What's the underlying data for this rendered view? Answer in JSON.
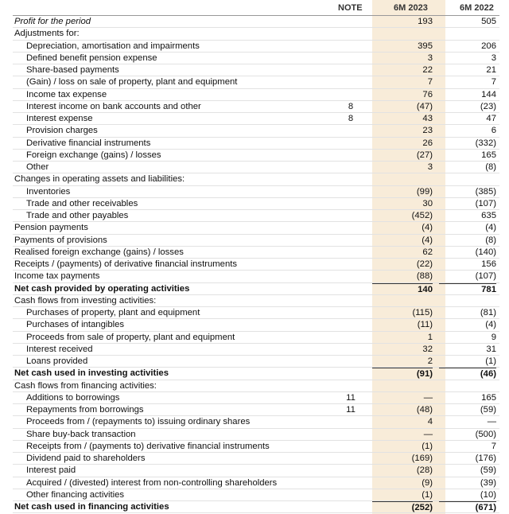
{
  "header": {
    "note": "NOTE",
    "m2023": "6M 2023",
    "m2022": "6M 2022"
  },
  "rows": [
    {
      "label": "Profit for the period",
      "m2023": "193",
      "m2022": "505"
    },
    {
      "label": "Adjustments for:"
    },
    {
      "label": "Depreciation, amortisation and impairments",
      "m2023": "395",
      "m2022": "206"
    },
    {
      "label": "Defined benefit pension expense",
      "m2023": "3",
      "m2022": "3"
    },
    {
      "label": "Share-based payments",
      "m2023": "22",
      "m2022": "21"
    },
    {
      "label": "(Gain) / loss on sale of property, plant and equipment",
      "m2023": "7",
      "m2022": "7"
    },
    {
      "label": "Income tax expense",
      "m2023": "76",
      "m2022": "144"
    },
    {
      "label": "Interest income on bank accounts and other",
      "note": "8",
      "m2023": "(47)",
      "m2022": "(23)"
    },
    {
      "label": "Interest expense",
      "note": "8",
      "m2023": "43",
      "m2022": "47"
    },
    {
      "label": "Provision charges",
      "m2023": "23",
      "m2022": "6"
    },
    {
      "label": "Derivative financial instruments",
      "m2023": "26",
      "m2022": "(332)"
    },
    {
      "label": "Foreign exchange (gains) / losses",
      "m2023": "(27)",
      "m2022": "165"
    },
    {
      "label": "Other",
      "m2023": "3",
      "m2022": "(8)"
    },
    {
      "label": "Changes in operating assets and liabilities:"
    },
    {
      "label": "Inventories",
      "m2023": "(99)",
      "m2022": "(385)"
    },
    {
      "label": "Trade and other receivables",
      "m2023": "30",
      "m2022": "(107)"
    },
    {
      "label": "Trade and other payables",
      "m2023": "(452)",
      "m2022": "635"
    },
    {
      "label": "Pension payments",
      "m2023": "(4)",
      "m2022": "(4)"
    },
    {
      "label": "Payments of provisions",
      "m2023": "(4)",
      "m2022": "(8)"
    },
    {
      "label": "Realised foreign exchange (gains) / losses",
      "m2023": "62",
      "m2022": "(140)"
    },
    {
      "label": "Receipts / (payments) of derivative financial instruments",
      "m2023": "(22)",
      "m2022": "156"
    },
    {
      "label": "Income tax payments",
      "m2023": "(88)",
      "m2022": "(107)"
    },
    {
      "label": "Net cash provided by operating activities",
      "m2023": "140",
      "m2022": "781"
    },
    {
      "label": "Cash flows from investing activities:"
    },
    {
      "label": "Purchases of property, plant and equipment",
      "m2023": "(115)",
      "m2022": "(81)"
    },
    {
      "label": "Purchases of intangibles",
      "m2023": "(11)",
      "m2022": "(4)"
    },
    {
      "label": "Proceeds from sale of property, plant and equipment",
      "m2023": "1",
      "m2022": "9"
    },
    {
      "label": "Interest received",
      "m2023": "32",
      "m2022": "31"
    },
    {
      "label": "Loans provided",
      "m2023": "2",
      "m2022": "(1)"
    },
    {
      "label": "Net cash used in investing activities",
      "m2023": "(91)",
      "m2022": "(46)"
    },
    {
      "label": "Cash flows from financing activities:"
    },
    {
      "label": "Additions to borrowings",
      "note": "11",
      "m2023": "—",
      "m2022": "165"
    },
    {
      "label": "Repayments from borrowings",
      "note": "11",
      "m2023": "(48)",
      "m2022": "(59)"
    },
    {
      "label": "Proceeds from / (repayments to) issuing ordinary shares",
      "m2023": "4",
      "m2022": "—"
    },
    {
      "label": "Share buy-back transaction",
      "m2023": "—",
      "m2022": "(500)"
    },
    {
      "label": "Receipts from / (payments to) derivative financial instruments",
      "m2023": "(1)",
      "m2022": "7"
    },
    {
      "label": "Dividend paid to shareholders",
      "m2023": "(169)",
      "m2022": "(176)"
    },
    {
      "label": "Interest paid",
      "m2023": "(28)",
      "m2022": "(59)"
    },
    {
      "label": "Acquired / (divested) interest from non-controlling shareholders",
      "m2023": "(9)",
      "m2022": "(39)"
    },
    {
      "label": "Other financing activities",
      "m2023": "(1)",
      "m2022": "(10)"
    },
    {
      "label": "Net cash used in financing activities",
      "m2023": "(252)",
      "m2022": "(671)"
    }
  ]
}
